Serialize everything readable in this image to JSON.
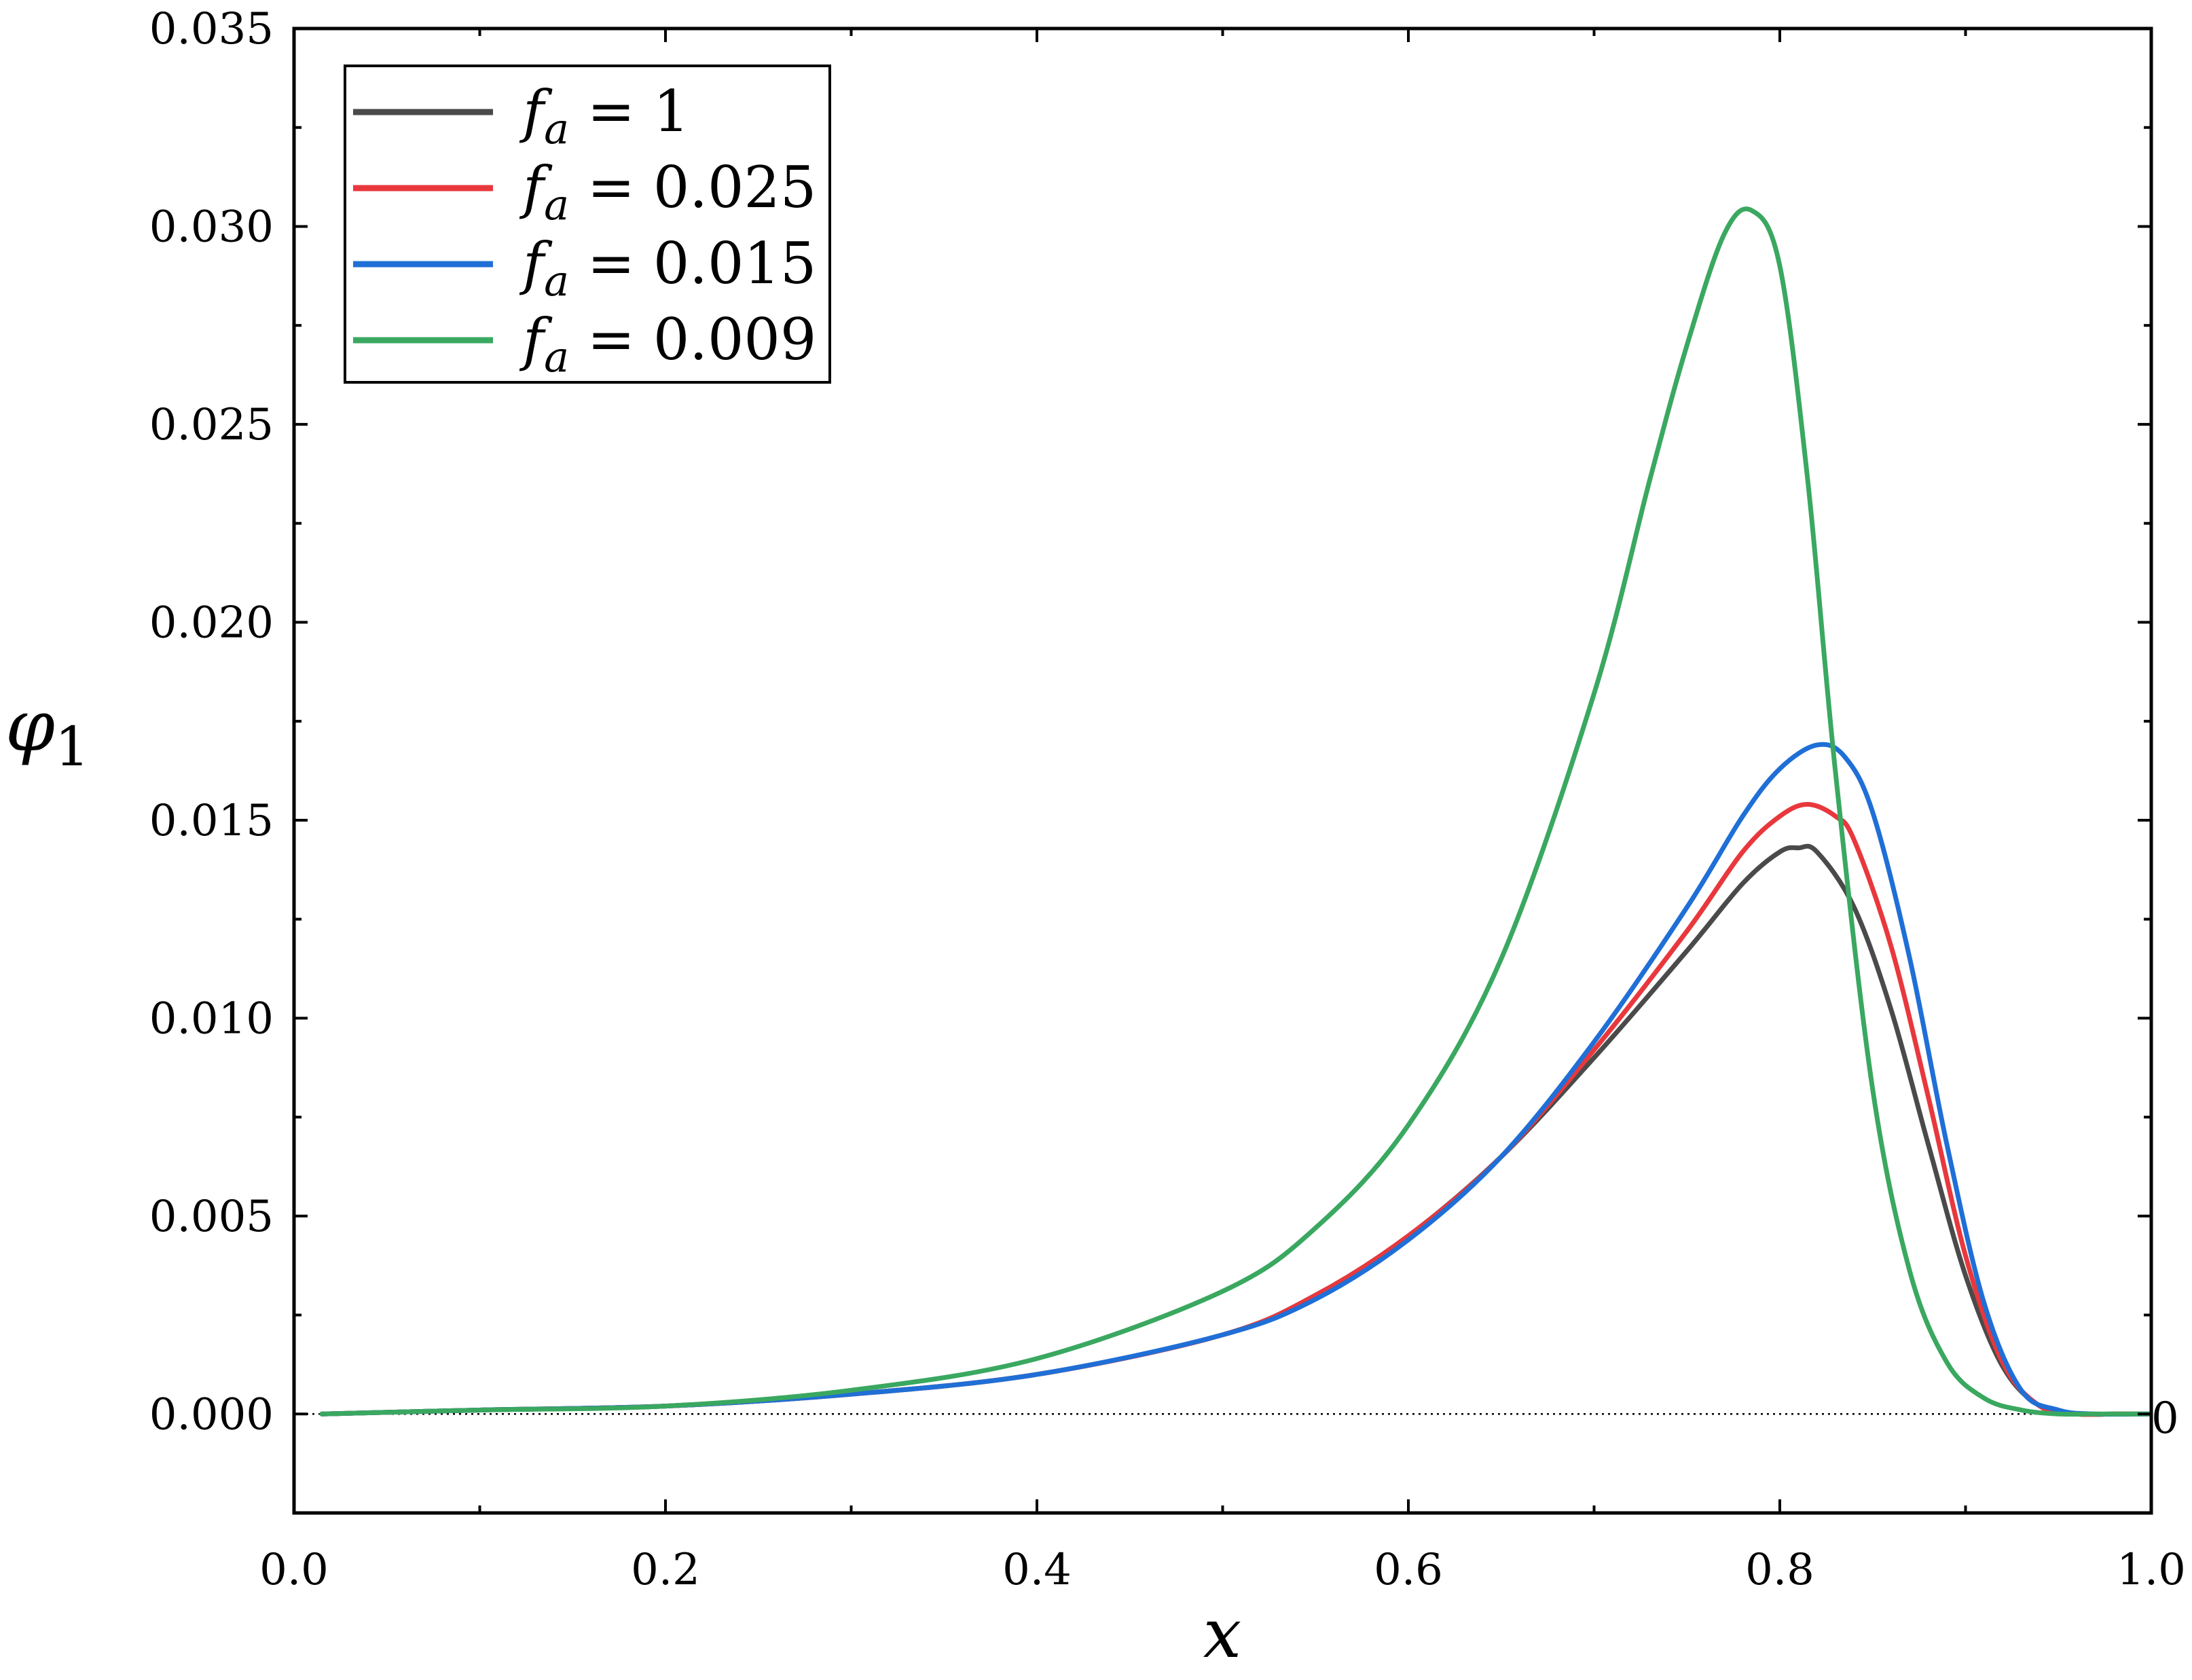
{
  "chart_data": {
    "type": "line",
    "title": "",
    "xlabel": "x",
    "ylabel": {
      "main": "φ",
      "sub": "1"
    },
    "xlim": [
      0.0,
      1.0
    ],
    "ylim": [
      -0.0025,
      0.035
    ],
    "x_ticks": [
      0.0,
      0.2,
      0.4,
      0.6,
      0.8,
      1.0
    ],
    "x_tick_labels": [
      "0.0",
      "0.2",
      "0.4",
      "0.6",
      "0.8",
      "1.0"
    ],
    "y_ticks": [
      0.0,
      0.005,
      0.01,
      0.015,
      0.02,
      0.025,
      0.03,
      0.035
    ],
    "y_tick_labels": [
      "0.000",
      "0.005",
      "0.010",
      "0.015",
      "0.020",
      "0.025",
      "0.030",
      "0.035"
    ],
    "right_axis_label": "0",
    "reference_line": {
      "y": 0.0,
      "style": "dotted"
    },
    "grid": false,
    "legend_position": "top-left",
    "series": [
      {
        "name": "f_a = 1",
        "legend": {
          "symbol": "f",
          "sub": "a",
          "rest": " = 1"
        },
        "color": "#4a4a4a",
        "x": [
          0.015,
          0.1,
          0.2,
          0.3,
          0.4,
          0.5,
          0.55,
          0.6,
          0.65,
          0.7,
          0.75,
          0.78,
          0.8,
          0.81,
          0.82,
          0.84,
          0.86,
          0.88,
          0.9,
          0.92,
          0.94,
          0.96,
          0.98,
          1.0
        ],
        "y": [
          0.0,
          0.0001,
          0.0002,
          0.0005,
          0.001,
          0.002,
          0.003,
          0.0045,
          0.0065,
          0.009,
          0.0117,
          0.0134,
          0.0142,
          0.0143,
          0.0142,
          0.0128,
          0.0102,
          0.0068,
          0.0035,
          0.0012,
          0.0002,
          0.0,
          0.0,
          0.0
        ]
      },
      {
        "name": "f_a = 0.025",
        "legend": {
          "symbol": "f",
          "sub": "a",
          "rest": " = 0.025"
        },
        "color": "#e8383d",
        "x": [
          0.015,
          0.1,
          0.2,
          0.3,
          0.4,
          0.5,
          0.55,
          0.6,
          0.65,
          0.7,
          0.75,
          0.78,
          0.8,
          0.815,
          0.83,
          0.84,
          0.86,
          0.88,
          0.9,
          0.92,
          0.94,
          0.96,
          0.98,
          1.0
        ],
        "y": [
          0.0,
          0.0001,
          0.0002,
          0.0005,
          0.001,
          0.002,
          0.003,
          0.0045,
          0.0065,
          0.0092,
          0.0122,
          0.0142,
          0.0151,
          0.0154,
          0.0151,
          0.0145,
          0.0118,
          0.008,
          0.004,
          0.0013,
          0.0002,
          0.0,
          0.0,
          0.0
        ]
      },
      {
        "name": "f_a = 0.015",
        "legend": {
          "symbol": "f",
          "sub": "a",
          "rest": " = 0.015"
        },
        "color": "#1f6fd6",
        "x": [
          0.015,
          0.1,
          0.2,
          0.3,
          0.4,
          0.5,
          0.55,
          0.6,
          0.65,
          0.7,
          0.75,
          0.78,
          0.8,
          0.82,
          0.835,
          0.85,
          0.87,
          0.89,
          0.91,
          0.93,
          0.95,
          0.97,
          1.0
        ],
        "y": [
          0.0,
          0.0001,
          0.0002,
          0.0005,
          0.001,
          0.002,
          0.0029,
          0.0044,
          0.0065,
          0.0094,
          0.0128,
          0.0151,
          0.0163,
          0.0169,
          0.0166,
          0.0152,
          0.0115,
          0.0068,
          0.0028,
          0.0006,
          0.0001,
          0.0,
          0.0
        ]
      },
      {
        "name": "f_a = 0.009",
        "legend": {
          "symbol": "f",
          "sub": "a",
          "rest": " = 0.009"
        },
        "color": "#3aa860",
        "x": [
          0.015,
          0.1,
          0.2,
          0.3,
          0.4,
          0.5,
          0.55,
          0.6,
          0.65,
          0.7,
          0.73,
          0.75,
          0.77,
          0.785,
          0.8,
          0.815,
          0.83,
          0.85,
          0.87,
          0.89,
          0.91,
          0.93,
          0.95,
          0.97,
          1.0
        ],
        "y": [
          0.0,
          0.0001,
          0.0002,
          0.0006,
          0.0014,
          0.0031,
          0.0047,
          0.0073,
          0.0115,
          0.0182,
          0.0236,
          0.027,
          0.0298,
          0.0304,
          0.029,
          0.0236,
          0.0162,
          0.0082,
          0.0036,
          0.0013,
          0.0004,
          0.0001,
          0.0,
          0.0,
          0.0
        ]
      }
    ]
  }
}
